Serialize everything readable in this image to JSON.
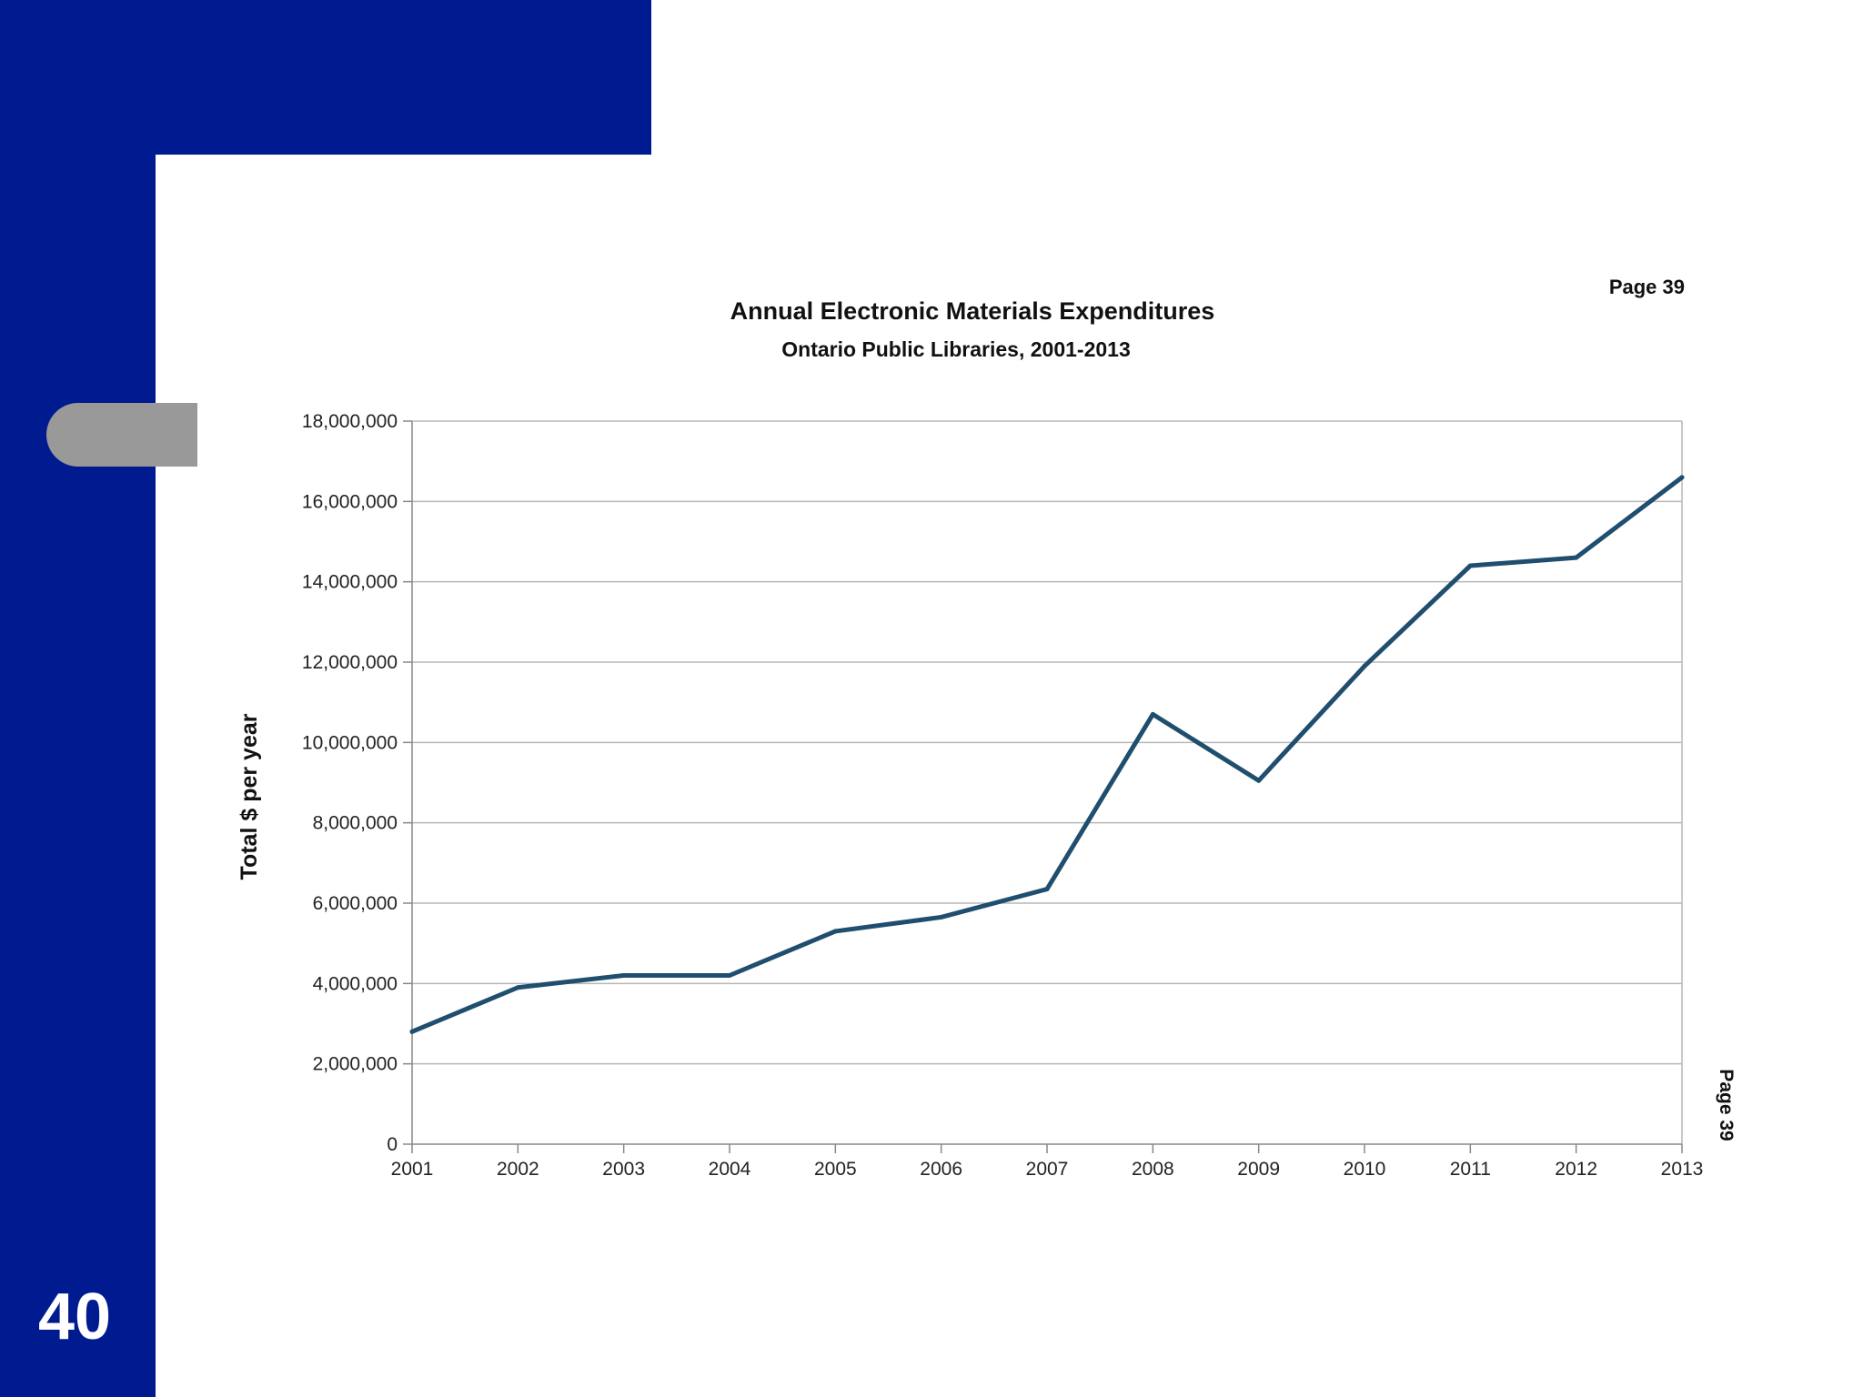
{
  "slide": {
    "number": "40"
  },
  "page_labels": {
    "top": "Page 39",
    "side": "Page 39"
  },
  "colors": {
    "brand_blue": "#001a8f",
    "tab_grey": "#999999",
    "series_line": "#1f4e6e",
    "grid": "#b7b7b7"
  },
  "chart_data": {
    "type": "line",
    "title": "Annual Electronic Materials Expenditures",
    "subtitle": "Ontario Public Libraries, 2001-2013",
    "ylabel": "Total $ per year",
    "xlabel": "",
    "ylim": [
      0,
      18000000
    ],
    "ytick_values": [
      0,
      2000000,
      4000000,
      6000000,
      8000000,
      10000000,
      12000000,
      14000000,
      16000000,
      18000000
    ],
    "ytick_labels": [
      "0",
      "2,000,000",
      "4,000,000",
      "6,000,000",
      "8,000,000",
      "10,000,000",
      "12,000,000",
      "14,000,000",
      "16,000,000",
      "18,000,000"
    ],
    "categories": [
      "2001",
      "2002",
      "2003",
      "2004",
      "2005",
      "2006",
      "2007",
      "2008",
      "2009",
      "2010",
      "2011",
      "2012",
      "2013"
    ],
    "series": [
      {
        "values": [
          2800000,
          3900000,
          4200000,
          4200000,
          5300000,
          5650000,
          6350000,
          10700000,
          9050000,
          11900000,
          14400000,
          14600000,
          16600000
        ]
      }
    ],
    "grid": true,
    "legend": "none"
  }
}
